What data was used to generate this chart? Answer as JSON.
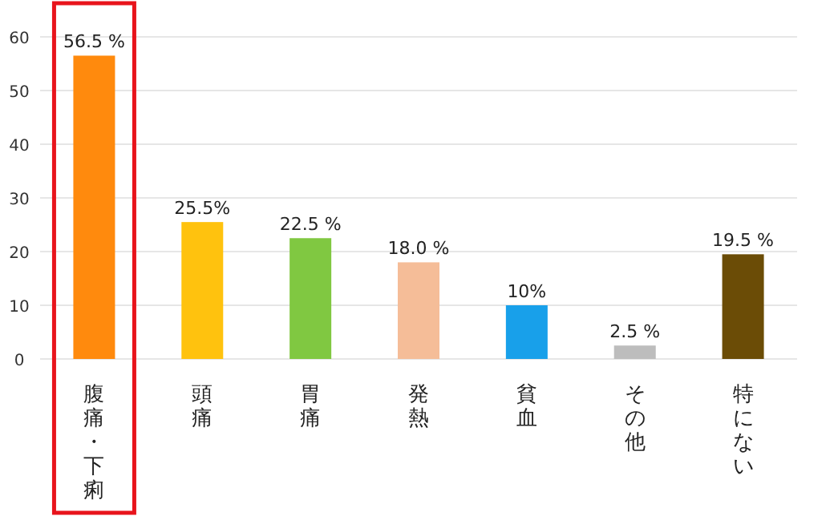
{
  "chart_data": {
    "type": "bar",
    "categories": [
      "腹痛・下痢",
      "頭痛",
      "胃痛",
      "発熱",
      "貧血",
      "その他",
      "特にない"
    ],
    "values": [
      56.5,
      25.5,
      22.5,
      18.0,
      10,
      2.5,
      19.5
    ],
    "colors": [
      "#ff8a0d",
      "#ffc20e",
      "#80c841",
      "#f5bd98",
      "#18a0ea",
      "#bdbdbd",
      "#6b4c06"
    ],
    "value_labels": [
      "56.5 %",
      "25.5%",
      "22.5 %",
      "18.0 %",
      "10%",
      "2.5 %",
      "19.5 %"
    ],
    "ylim": [
      0,
      60
    ],
    "yticks": [
      0,
      10,
      20,
      30,
      40,
      50,
      60
    ],
    "grid": "y"
  }
}
